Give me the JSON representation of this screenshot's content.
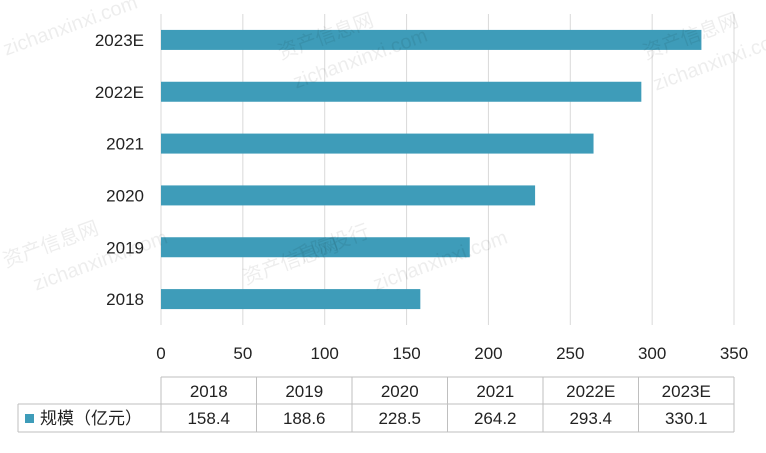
{
  "chart_data": {
    "type": "bar",
    "orientation": "horizontal",
    "categories": [
      "2018",
      "2019",
      "2020",
      "2021",
      "2022E",
      "2023E"
    ],
    "series": [
      {
        "name": "规模（亿元）",
        "values": [
          158.4,
          188.6,
          228.5,
          264.2,
          293.4,
          330.1
        ],
        "color": "#3e9cb9"
      }
    ],
    "x_ticks": [
      "0",
      "50",
      "100",
      "150",
      "200",
      "250",
      "300",
      "350"
    ],
    "xlim": [
      0,
      350
    ],
    "grid": "vertical",
    "legend": "data-table-left",
    "data_table": {
      "headers": [
        "2018",
        "2019",
        "2020",
        "2021",
        "2022E",
        "2023E"
      ],
      "row_label": "规模（亿元）",
      "values": [
        "158.4",
        "188.6",
        "228.5",
        "264.2",
        "293.4",
        "330.1"
      ]
    }
  },
  "watermark": {
    "brand": "资产信息网",
    "domain": "zichanxinxi.com",
    "brand2": "千际投行"
  }
}
